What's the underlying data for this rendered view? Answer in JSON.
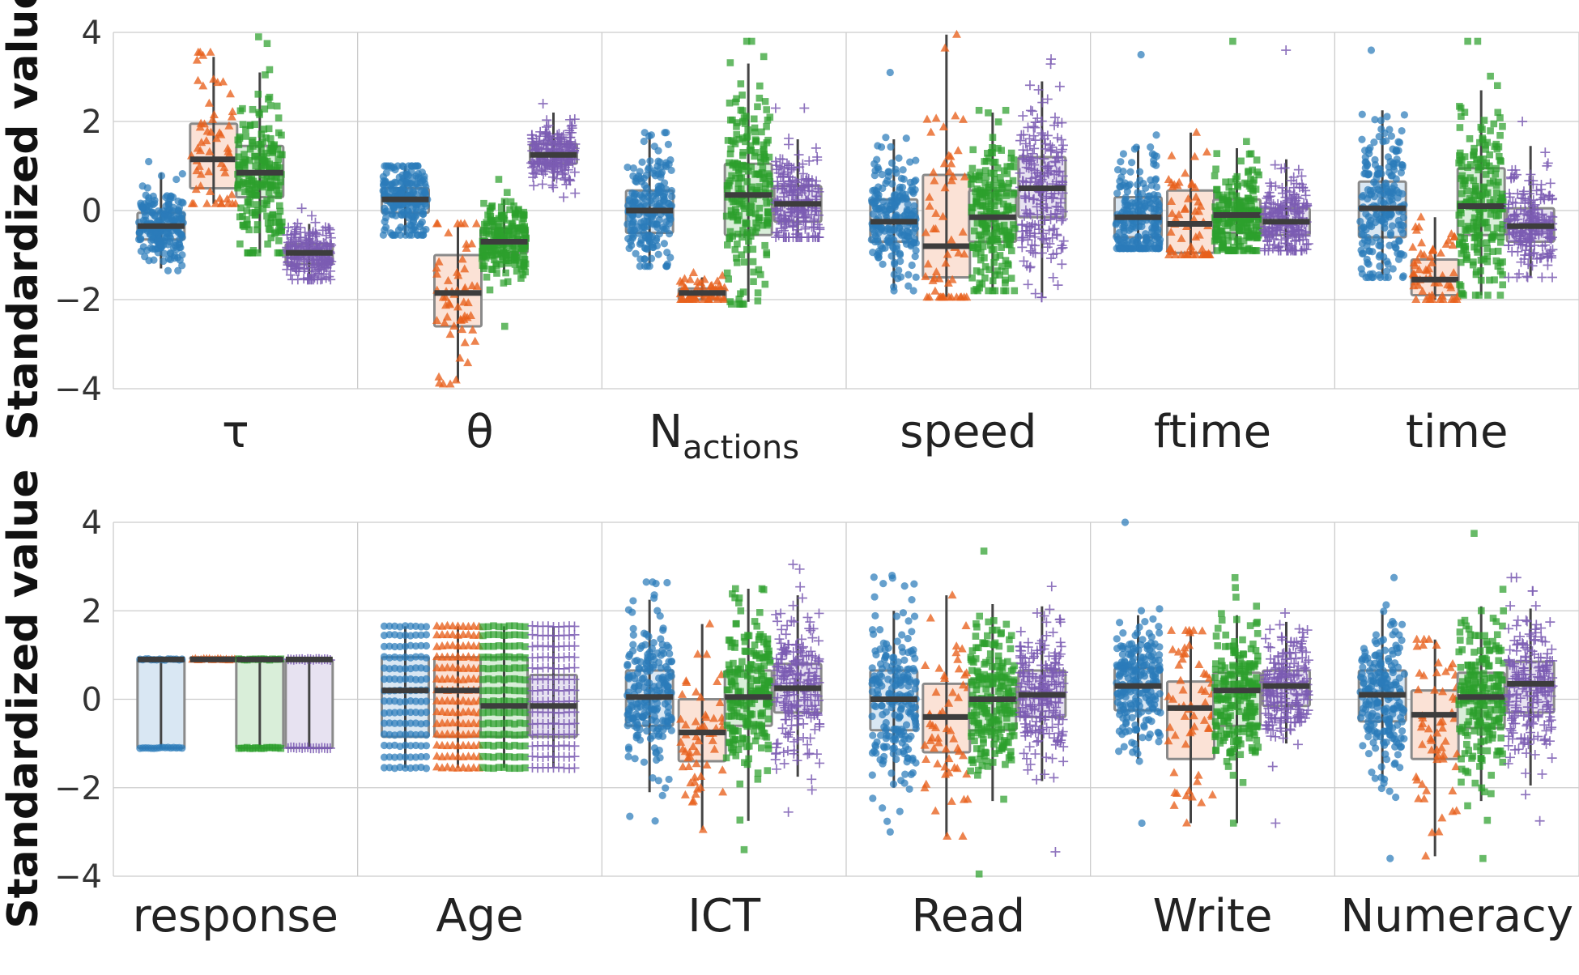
{
  "chart_data": [
    {
      "type": "box",
      "ylabel": "Standardized value",
      "ylim": [
        -4,
        4
      ],
      "yticks": [
        4,
        2,
        0,
        -2,
        -4
      ],
      "ytick_labels": [
        "4",
        "2",
        "0",
        "−2",
        "−4"
      ],
      "grid": true,
      "categories": [
        {
          "label": "τ",
          "sub": ""
        },
        {
          "label": "θ",
          "sub": ""
        },
        {
          "label": "N",
          "sub": "actions"
        },
        {
          "label": "speed",
          "sub": ""
        },
        {
          "label": "ftime",
          "sub": ""
        },
        {
          "label": "time",
          "sub": ""
        }
      ],
      "series": [
        {
          "color": "#2b7bba",
          "marker": "circle",
          "stats": [
            {
              "q1": -0.65,
              "med": -0.35,
              "q3": -0.05,
              "lo": -1.3,
              "hi": 0.85,
              "min": -1.35,
              "max": 1.1
            },
            {
              "q1": -0.05,
              "med": 0.25,
              "q3": 0.5,
              "lo": -0.55,
              "hi": 1.0,
              "min": -0.55,
              "max": 1.0
            },
            {
              "q1": -0.5,
              "med": 0.0,
              "q3": 0.45,
              "lo": -1.25,
              "hi": 1.75,
              "min": -1.25,
              "max": 1.75
            },
            {
              "q1": -0.7,
              "med": -0.25,
              "q3": 0.25,
              "lo": -1.75,
              "hi": 1.6,
              "min": -1.8,
              "max": 3.1
            },
            {
              "q1": -0.6,
              "med": -0.15,
              "q3": 0.3,
              "lo": -0.85,
              "hi": 1.45,
              "min": -0.85,
              "max": 3.5
            },
            {
              "q1": -0.6,
              "med": 0.05,
              "q3": 0.65,
              "lo": -1.45,
              "hi": 2.25,
              "min": -1.5,
              "max": 3.6
            }
          ]
        },
        {
          "color": "#e8601c",
          "marker": "triangle",
          "stats": [
            {
              "q1": 0.5,
              "med": 1.15,
              "q3": 1.95,
              "lo": 0.15,
              "hi": 3.45,
              "min": 0.15,
              "max": 3.55
            },
            {
              "q1": -2.6,
              "med": -1.85,
              "q3": -1.0,
              "lo": -3.85,
              "hi": -0.35,
              "min": -3.9,
              "max": -0.3
            },
            {
              "q1": -2.0,
              "med": -1.85,
              "q3": -1.75,
              "lo": -2.0,
              "hi": -1.5,
              "min": -2.0,
              "max": -1.4
            },
            {
              "q1": -1.5,
              "med": -0.8,
              "q3": 0.8,
              "lo": -1.95,
              "hi": 3.95,
              "min": -1.95,
              "max": 3.95
            },
            {
              "q1": -0.95,
              "med": -0.3,
              "q3": 0.45,
              "lo": -1.0,
              "hi": 1.75,
              "min": -1.0,
              "max": 1.75
            },
            {
              "q1": -1.9,
              "med": -1.55,
              "q3": -1.1,
              "lo": -2.0,
              "hi": -0.15,
              "min": -2.0,
              "max": -0.15
            }
          ]
        },
        {
          "color": "#2ca02c",
          "marker": "square",
          "stats": [
            {
              "q1": 0.3,
              "med": 0.85,
              "q3": 1.45,
              "lo": -0.95,
              "hi": 3.1,
              "min": -0.95,
              "max": 3.9
            },
            {
              "q1": -0.95,
              "med": -0.7,
              "q3": -0.4,
              "lo": -1.4,
              "hi": 0.25,
              "min": -2.6,
              "max": 0.7
            },
            {
              "q1": -0.55,
              "med": 0.35,
              "q3": 1.05,
              "lo": -2.05,
              "hi": 3.3,
              "min": -2.1,
              "max": 3.8
            },
            {
              "q1": -0.7,
              "med": -0.15,
              "q3": 0.45,
              "lo": -1.8,
              "hi": 2.2,
              "min": -1.8,
              "max": 2.25
            },
            {
              "q1": -0.5,
              "med": -0.1,
              "q3": 0.25,
              "lo": -0.85,
              "hi": 1.4,
              "min": -0.9,
              "max": 3.8
            },
            {
              "q1": -0.55,
              "med": 0.1,
              "q3": 0.95,
              "lo": -1.9,
              "hi": 2.7,
              "min": -1.9,
              "max": 3.8
            }
          ]
        },
        {
          "color": "#7b5cb3",
          "marker": "plus",
          "stats": [
            {
              "q1": -1.2,
              "med": -0.95,
              "q3": -0.75,
              "lo": -1.55,
              "hi": -0.3,
              "min": -1.55,
              "max": 0.05
            },
            {
              "q1": 1.05,
              "med": 1.25,
              "q3": 1.5,
              "lo": 0.65,
              "hi": 2.2,
              "min": 0.3,
              "max": 2.4
            },
            {
              "q1": -0.25,
              "med": 0.15,
              "q3": 0.55,
              "lo": -0.6,
              "hi": 1.6,
              "min": -0.6,
              "max": 2.3
            },
            {
              "q1": -0.15,
              "med": 0.5,
              "q3": 1.2,
              "lo": -1.95,
              "hi": 2.9,
              "min": -1.95,
              "max": 3.4
            },
            {
              "q1": -0.55,
              "med": -0.25,
              "q3": 0.05,
              "lo": -0.9,
              "hi": 1.15,
              "min": -0.9,
              "max": 3.6
            },
            {
              "q1": -0.7,
              "med": -0.35,
              "q3": 0.05,
              "lo": -1.5,
              "hi": 1.45,
              "min": -1.5,
              "max": 2.0
            }
          ]
        }
      ]
    },
    {
      "type": "box",
      "ylabel": "Standardized value",
      "ylim": [
        -4,
        4
      ],
      "yticks": [
        4,
        2,
        0,
        -2,
        -4
      ],
      "ytick_labels": [
        "4",
        "2",
        "0",
        "−2",
        "−4"
      ],
      "grid": true,
      "categories": [
        {
          "label": "response",
          "sub": ""
        },
        {
          "label": "Age",
          "sub": ""
        },
        {
          "label": "ICT",
          "sub": ""
        },
        {
          "label": "Read",
          "sub": ""
        },
        {
          "label": "Write",
          "sub": ""
        },
        {
          "label": "Numeracy",
          "sub": ""
        }
      ],
      "series": [
        {
          "color": "#2b7bba",
          "marker": "circle",
          "stats": [
            {
              "q1": -1.1,
              "med": 0.9,
              "q3": 0.9,
              "lo": -1.1,
              "hi": 0.9,
              "min": -1.1,
              "max": 0.9,
              "discrete": [
                -1.1,
                0.9
              ]
            },
            {
              "q1": -0.85,
              "med": 0.2,
              "q3": 0.95,
              "lo": -1.55,
              "hi": 1.65,
              "min": -1.55,
              "max": 1.65,
              "discrete": [
                -1.55,
                -1.3,
                -1.05,
                -0.8,
                -0.55,
                -0.3,
                -0.05,
                0.2,
                0.45,
                0.7,
                0.95,
                1.2,
                1.45,
                1.65
              ]
            },
            {
              "q1": -0.6,
              "med": 0.05,
              "q3": 0.65,
              "lo": -2.1,
              "hi": 2.25,
              "min": -2.75,
              "max": 2.65
            },
            {
              "q1": -0.7,
              "med": 0.0,
              "q3": 0.65,
              "lo": -2.0,
              "hi": 2.0,
              "min": -3.0,
              "max": 2.8
            },
            {
              "q1": -0.25,
              "med": 0.3,
              "q3": 0.7,
              "lo": -1.35,
              "hi": 1.9,
              "min": -2.8,
              "max": 4.0
            },
            {
              "q1": -0.5,
              "med": 0.1,
              "q3": 0.65,
              "lo": -1.85,
              "hi": 2.0,
              "min": -3.6,
              "max": 2.75
            }
          ]
        },
        {
          "color": "#e8601c",
          "marker": "triangle",
          "stats": [
            {
              "q1": 0.9,
              "med": 0.9,
              "q3": 0.95,
              "lo": 0.9,
              "hi": 0.95,
              "min": 0.9,
              "max": 0.95,
              "discrete": [
                0.9
              ]
            },
            {
              "q1": -0.85,
              "med": 0.2,
              "q3": 0.95,
              "lo": -1.55,
              "hi": 1.65,
              "min": -1.55,
              "max": 1.65,
              "discrete": [
                -1.55,
                -1.3,
                -1.05,
                -0.8,
                -0.55,
                -0.3,
                -0.05,
                0.2,
                0.45,
                0.7,
                0.95,
                1.2,
                1.45,
                1.65
              ]
            },
            {
              "q1": -1.4,
              "med": -0.75,
              "q3": 0.0,
              "lo": -2.95,
              "hi": 1.7,
              "min": -2.95,
              "max": 1.7
            },
            {
              "q1": -1.2,
              "med": -0.4,
              "q3": 0.35,
              "lo": -3.1,
              "hi": 2.35,
              "min": -3.1,
              "max": 2.35
            },
            {
              "q1": -1.35,
              "med": -0.2,
              "q3": 0.4,
              "lo": -2.8,
              "hi": 1.55,
              "min": -2.8,
              "max": 1.55
            },
            {
              "q1": -1.35,
              "med": -0.35,
              "q3": 0.2,
              "lo": -3.55,
              "hi": 1.35,
              "min": -3.55,
              "max": 1.35
            }
          ]
        },
        {
          "color": "#2ca02c",
          "marker": "square",
          "stats": [
            {
              "q1": -1.1,
              "med": 0.9,
              "q3": 0.9,
              "lo": -1.1,
              "hi": 0.9,
              "min": -1.1,
              "max": 0.9,
              "discrete": [
                -1.1,
                0.9
              ]
            },
            {
              "q1": -0.85,
              "med": -0.15,
              "q3": 0.95,
              "lo": -1.55,
              "hi": 1.65,
              "min": -1.55,
              "max": 1.65,
              "discrete": [
                -1.55,
                -1.3,
                -1.05,
                -0.8,
                -0.55,
                -0.3,
                -0.05,
                0.2,
                0.45,
                0.7,
                0.95,
                1.2,
                1.45,
                1.65
              ]
            },
            {
              "q1": -0.6,
              "med": 0.05,
              "q3": 0.65,
              "lo": -2.75,
              "hi": 2.5,
              "min": -3.4,
              "max": 2.5
            },
            {
              "q1": -0.7,
              "med": 0.0,
              "q3": 0.45,
              "lo": -2.3,
              "hi": 2.15,
              "min": -3.95,
              "max": 3.35
            },
            {
              "q1": -0.6,
              "med": 0.2,
              "q3": 0.6,
              "lo": -2.8,
              "hi": 1.9,
              "min": -2.8,
              "max": 2.75
            },
            {
              "q1": -0.65,
              "med": 0.05,
              "q3": 0.6,
              "lo": -2.3,
              "hi": 2.1,
              "min": -3.6,
              "max": 3.75
            }
          ]
        },
        {
          "color": "#7b5cb3",
          "marker": "plus",
          "stats": [
            {
              "q1": -1.1,
              "med": 0.9,
              "q3": 0.9,
              "lo": -1.1,
              "hi": 0.9,
              "min": -1.1,
              "max": 0.9,
              "discrete": [
                -1.1,
                0.9
              ]
            },
            {
              "q1": -0.85,
              "med": -0.15,
              "q3": 0.55,
              "lo": -1.55,
              "hi": 1.65,
              "min": -1.55,
              "max": 1.65,
              "discrete": [
                -1.55,
                -1.3,
                -1.05,
                -0.8,
                -0.55,
                -0.3,
                -0.05,
                0.2,
                0.45,
                0.7,
                0.95,
                1.2,
                1.45,
                1.65
              ]
            },
            {
              "q1": -0.3,
              "med": 0.25,
              "q3": 0.8,
              "lo": -1.75,
              "hi": 2.35,
              "min": -2.55,
              "max": 3.05
            },
            {
              "q1": -0.4,
              "med": 0.1,
              "q3": 0.65,
              "lo": -1.85,
              "hi": 2.1,
              "min": -3.45,
              "max": 2.55
            },
            {
              "q1": -0.15,
              "med": 0.3,
              "q3": 0.65,
              "lo": -1.0,
              "hi": 1.75,
              "min": -2.8,
              "max": 1.95
            },
            {
              "q1": -0.3,
              "med": 0.35,
              "q3": 0.85,
              "lo": -1.95,
              "hi": 2.05,
              "min": -2.75,
              "max": 2.75
            }
          ]
        }
      ]
    }
  ]
}
